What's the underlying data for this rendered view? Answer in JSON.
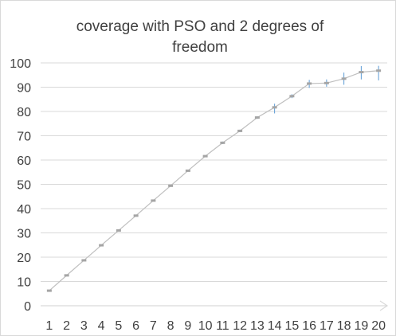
{
  "chart_data": {
    "type": "line",
    "title_lines": [
      "coverage with PSO  and 2 degrees of",
      "freedom"
    ],
    "x": [
      1,
      2,
      3,
      4,
      5,
      6,
      7,
      8,
      9,
      10,
      11,
      12,
      13,
      14,
      15,
      16,
      17,
      18,
      19,
      20
    ],
    "series": [
      {
        "values": [
          6.2,
          12.5,
          18.7,
          24.9,
          31.0,
          37.1,
          43.3,
          49.4,
          55.6,
          61.6,
          67.1,
          72.0,
          77.5,
          81.7,
          86.3,
          91.5,
          91.7,
          93.5,
          96.2,
          96.8
        ],
        "error_low": [
          0.1,
          0.1,
          0.1,
          0.1,
          0.1,
          0.1,
          0.1,
          0.1,
          0.1,
          0.1,
          0.5,
          0.5,
          0.5,
          2.5,
          0.8,
          1.8,
          1.5,
          2.5,
          3.0,
          4.0
        ],
        "error_high": [
          0.1,
          0.1,
          0.1,
          0.1,
          0.1,
          0.1,
          0.1,
          0.1,
          0.1,
          0.1,
          0.5,
          0.5,
          0.5,
          1.5,
          0.8,
          1.5,
          1.5,
          2.5,
          2.5,
          2.0
        ]
      }
    ],
    "ylim": [
      0,
      100
    ],
    "yticks": [
      0,
      10,
      20,
      30,
      40,
      50,
      60,
      70,
      80,
      90,
      100
    ],
    "grid": true,
    "legend": "none",
    "colors": {
      "line": "#bfbfbf",
      "marker": "#a5a5a5",
      "errorbar": "#5b9bd5",
      "grid": "#d9d9d9",
      "axis": "#d9d9d9",
      "text": "#404040"
    }
  }
}
